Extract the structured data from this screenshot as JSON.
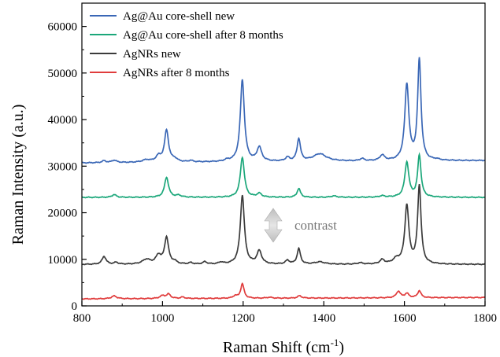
{
  "chart_data": {
    "type": "line",
    "xlabel_main": "Raman Shift (cm",
    "xlabel_sup": "-1",
    "xlabel_end": ")",
    "ylabel": "Raman Intensity (a.u.)",
    "xlim": [
      800,
      1800
    ],
    "ylim": [
      0,
      65000
    ],
    "x_ticks": [
      800,
      1000,
      1200,
      1400,
      1600,
      1800
    ],
    "y_ticks": [
      0,
      10000,
      20000,
      30000,
      40000,
      50000,
      60000
    ],
    "legend_position": "top-left",
    "annotation": "contrast",
    "series": [
      {
        "name": "Ag@Au core-shell new",
        "color": "#3a67b6",
        "baseline": 30700,
        "slope": 0.5,
        "peaks": [
          [
            855,
            400,
            6
          ],
          [
            880,
            500,
            7
          ],
          [
            960,
            500,
            12
          ],
          [
            990,
            1200,
            8
          ],
          [
            1010,
            6800,
            6
          ],
          [
            1030,
            600,
            8
          ],
          [
            1070,
            300,
            6
          ],
          [
            1160,
            300,
            8
          ],
          [
            1198,
            17600,
            6
          ],
          [
            1240,
            3000,
            7
          ],
          [
            1310,
            800,
            6
          ],
          [
            1338,
            4800,
            5
          ],
          [
            1390,
            1600,
            20
          ],
          [
            1495,
            500,
            6
          ],
          [
            1545,
            1200,
            7
          ],
          [
            1606,
            16300,
            6
          ],
          [
            1637,
            21600,
            5
          ],
          [
            1680,
            200,
            8
          ]
        ]
      },
      {
        "name": "Ag@Au core-shell after 8 months",
        "color": "#1ba77a",
        "baseline": 23300,
        "slope": 0,
        "peaks": [
          [
            880,
            600,
            6
          ],
          [
            1010,
            4300,
            6
          ],
          [
            1040,
            400,
            8
          ],
          [
            1198,
            8600,
            6
          ],
          [
            1240,
            800,
            7
          ],
          [
            1338,
            1900,
            5
          ],
          [
            1425,
            300,
            8
          ],
          [
            1545,
            300,
            8
          ],
          [
            1606,
            7500,
            6
          ],
          [
            1637,
            9000,
            5
          ]
        ]
      },
      {
        "name": "AgNRs new",
        "color": "#3b3b3b",
        "baseline": 8900,
        "slope": 0,
        "peaks": [
          [
            855,
            1700,
            6
          ],
          [
            885,
            400,
            6
          ],
          [
            960,
            1000,
            12
          ],
          [
            990,
            1800,
            8
          ],
          [
            1010,
            5700,
            6
          ],
          [
            1030,
            500,
            6
          ],
          [
            1070,
            300,
            6
          ],
          [
            1105,
            500,
            6
          ],
          [
            1145,
            400,
            6
          ],
          [
            1198,
            14800,
            6
          ],
          [
            1240,
            2800,
            7
          ],
          [
            1310,
            800,
            6
          ],
          [
            1338,
            3300,
            5
          ],
          [
            1390,
            500,
            15
          ],
          [
            1490,
            300,
            8
          ],
          [
            1545,
            900,
            7
          ],
          [
            1580,
            1000,
            10
          ],
          [
            1606,
            12500,
            6
          ],
          [
            1637,
            16800,
            5
          ]
        ]
      },
      {
        "name": "AgNRs after 8 months",
        "color": "#e03c3c",
        "baseline": 1500,
        "slope": 0.3,
        "peaks": [
          [
            880,
            600,
            8
          ],
          [
            1000,
            600,
            8
          ],
          [
            1015,
            900,
            6
          ],
          [
            1050,
            300,
            6
          ],
          [
            1180,
            500,
            6
          ],
          [
            1198,
            3100,
            5
          ],
          [
            1265,
            200,
            8
          ],
          [
            1340,
            500,
            6
          ],
          [
            1585,
            1400,
            6
          ],
          [
            1606,
            900,
            6
          ],
          [
            1637,
            1500,
            5
          ]
        ]
      }
    ]
  }
}
